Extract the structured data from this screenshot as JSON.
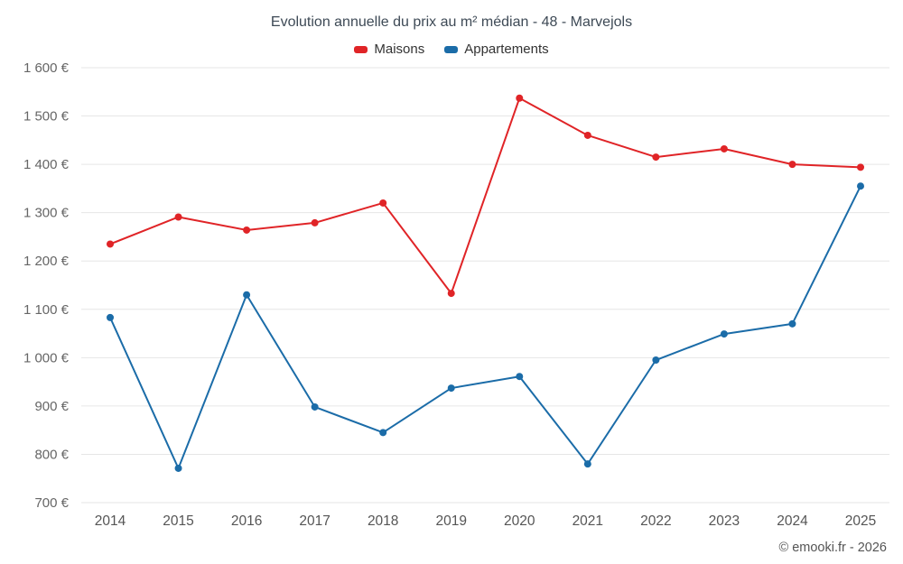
{
  "title": "Evolution annuelle du prix au m² médian - 48 - Marvejols",
  "footer": "© emooki.fr - 2026",
  "colors": {
    "maisons": "#e02427",
    "appartements": "#1b6ca8",
    "gridline": "#e6e6e6",
    "y_label": "#666666",
    "x_label": "#555555",
    "title": "#3e4a56"
  },
  "chart_data": {
    "type": "line",
    "title": "Evolution annuelle du prix au m² médian - 48 - Marvejols",
    "categories": [
      "2014",
      "2015",
      "2016",
      "2017",
      "2018",
      "2019",
      "2020",
      "2021",
      "2022",
      "2023",
      "2024",
      "2025"
    ],
    "series": [
      {
        "name": "Maisons",
        "color": "#e02427",
        "values": [
          1235,
          1291,
          1264,
          1279,
          1320,
          1133,
          1537,
          1460,
          1415,
          1432,
          1400,
          1394
        ]
      },
      {
        "name": "Appartements",
        "color": "#1b6ca8",
        "values": [
          1083,
          771,
          1130,
          898,
          845,
          937,
          961,
          780,
          995,
          1049,
          1070,
          1355
        ]
      }
    ],
    "xlabel": "",
    "ylabel": "",
    "ylim": [
      700,
      1600
    ],
    "y_tick_step": 100,
    "y_tick_labels": [
      "700 €",
      "800 €",
      "900 €",
      "1 000 €",
      "1 100 €",
      "1 200 €",
      "1 300 €",
      "1 400 €",
      "1 500 €",
      "1 600 €"
    ],
    "grid": "horizontal",
    "legend_position": "top"
  }
}
